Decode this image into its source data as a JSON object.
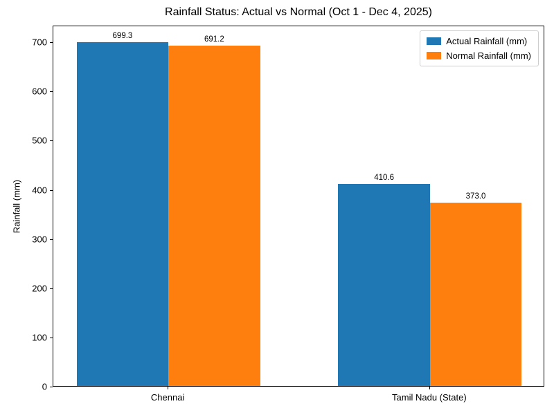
{
  "chart_data": {
    "type": "bar",
    "title": "Rainfall Status: Actual vs Normal (Oct 1 - Dec 4, 2025)",
    "xlabel": "",
    "ylabel": "Rainfall (mm)",
    "categories": [
      "Chennai",
      "Tamil Nadu (State)"
    ],
    "series": [
      {
        "name": "Actual Rainfall (mm)",
        "color": "#1f77b4",
        "values": [
          699.3,
          410.6
        ]
      },
      {
        "name": "Normal Rainfall (mm)",
        "color": "#ff7f0e",
        "values": [
          691.2,
          373.0
        ]
      }
    ],
    "bar_value_labels": [
      "699.3",
      "410.6",
      "691.2",
      "373.0"
    ],
    "ylim": [
      0,
      734
    ],
    "yticks": [
      0,
      100,
      200,
      300,
      400,
      500,
      600,
      700
    ],
    "legend_position": "upper right",
    "grid": false
  }
}
